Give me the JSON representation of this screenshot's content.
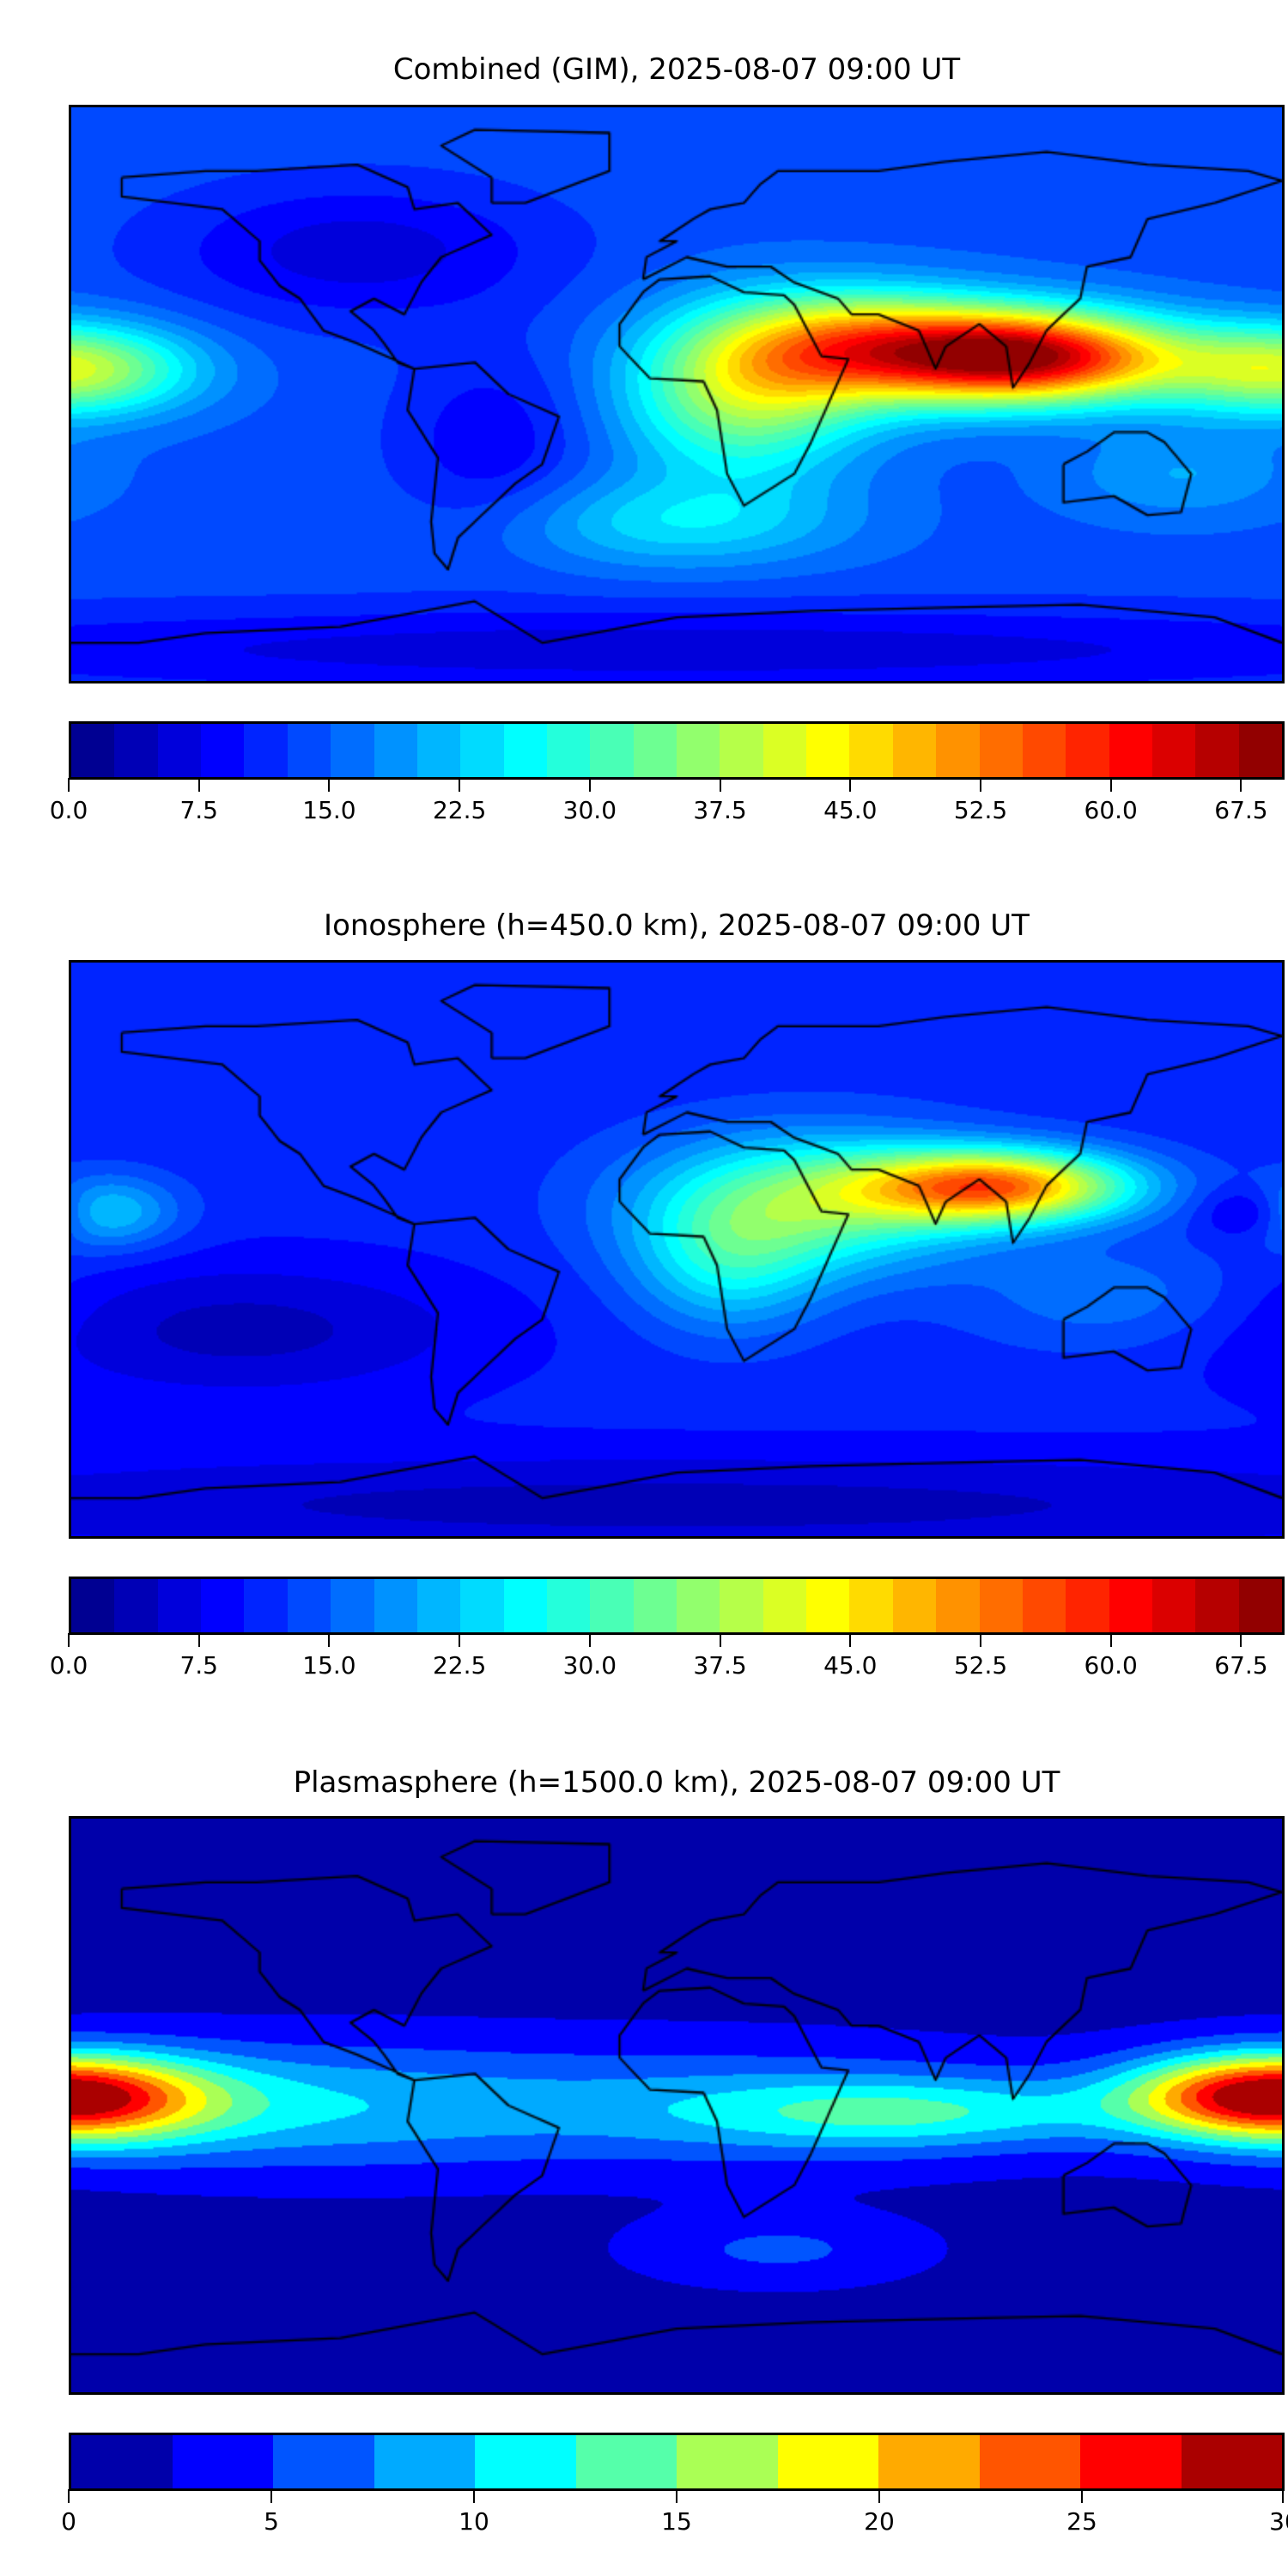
{
  "chart_data": [
    {
      "type": "heatmap",
      "title": "Combined (GIM), 2025-08-07 09:00 UT",
      "xlabel": "",
      "ylabel": "",
      "extent": {
        "lon": [
          -180,
          180
        ],
        "lat": [
          -90,
          90
        ]
      },
      "colormap": "jet",
      "levels": {
        "min": 0,
        "max": 70,
        "step": 2.5
      },
      "colorbar_ticks": [
        "0.0",
        "7.5",
        "15.0",
        "22.5",
        "30.0",
        "37.5",
        "45.0",
        "52.5",
        "60.0",
        "67.5"
      ],
      "colorbar_tick_values": [
        0,
        7.5,
        15,
        22.5,
        30,
        37.5,
        45,
        52.5,
        60,
        67.5
      ],
      "features": "max ~65 over South/Southeast Asia (~100E, 12N); ~40 over central Pacific; minima ~5 over North America and Antarctica"
    },
    {
      "type": "heatmap",
      "title": "Ionosphere  (h=450.0 km), 2025-08-07 09:00 UT",
      "xlabel": "",
      "ylabel": "",
      "extent": {
        "lon": [
          -180,
          180
        ],
        "lat": [
          -90,
          90
        ]
      },
      "colormap": "jet",
      "levels": {
        "min": 0,
        "max": 70,
        "step": 2.5
      },
      "colorbar_ticks": [
        "0.0",
        "7.5",
        "15.0",
        "22.5",
        "30.0",
        "37.5",
        "45.0",
        "52.5",
        "60.0",
        "67.5"
      ],
      "colorbar_tick_values": [
        0,
        7.5,
        15,
        22.5,
        30,
        37.5,
        45,
        52.5,
        60,
        67.5
      ],
      "features": "max ~52 over South Asia (~95E, 20N); ~35 over North Africa; minima ~3 over South Pacific"
    },
    {
      "type": "heatmap",
      "title": "Plasmasphere (h=1500.0 km), 2025-08-07 09:00 UT",
      "xlabel": "",
      "ylabel": "",
      "extent": {
        "lon": [
          -180,
          180
        ],
        "lat": [
          -90,
          90
        ]
      },
      "colormap": "jet",
      "levels": {
        "min": 0,
        "max": 30,
        "step": 2.5
      },
      "colorbar_ticks": [
        "0",
        "5",
        "10",
        "15",
        "20",
        "25",
        "30"
      ],
      "colorbar_tick_values": [
        0,
        5,
        10,
        15,
        20,
        25,
        30
      ],
      "features": "max ~23 near dateline at ~5N; equatorial band 10-15; high latitudes <2.5"
    }
  ]
}
